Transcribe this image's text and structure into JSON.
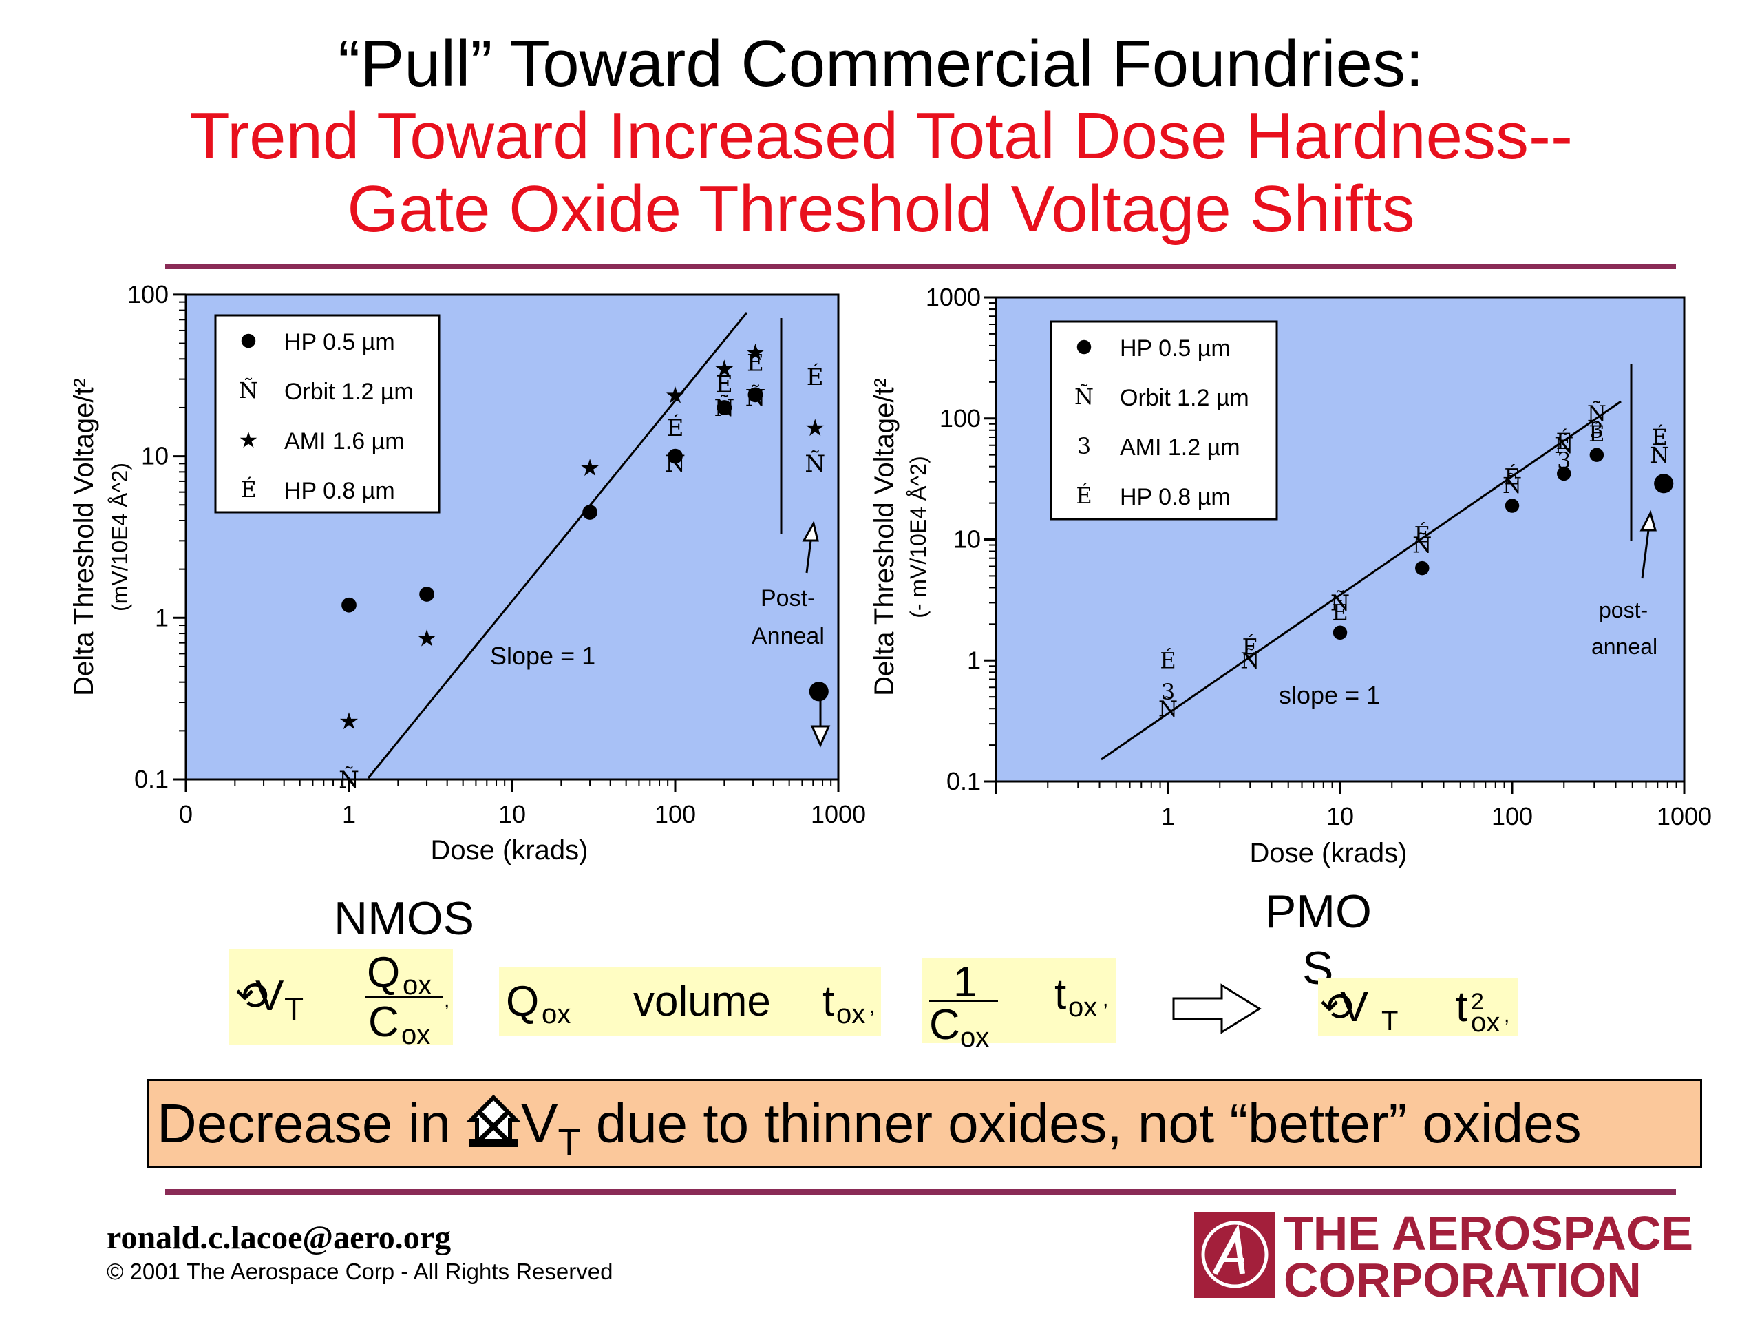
{
  "title": {
    "line1": "“Pull” Toward Commercial Foundries:",
    "line2": "Trend Toward Increased Total Dose Hardness--",
    "line3": "Gate Oxide Threshold Voltage Shifts"
  },
  "colors": {
    "accent_red": "#e8101d",
    "rule": "#8a2b56",
    "plot_bg": "#a8c1f6",
    "highlight": "#fffdc3",
    "banner": "#fbc89b",
    "brand": "#a31f3b"
  },
  "chart_data": [
    {
      "type": "scatter",
      "x_scale": "log",
      "y_scale": "log",
      "xlabel": "Dose (krads)",
      "ylabel": "Delta Threshold Voltage/t²",
      "ylabel_unit": "(mV/10E4 Å^2)",
      "xlim": [
        0.1,
        1000
      ],
      "ylim": [
        0.1,
        100
      ],
      "x_ticklabels": [
        "0",
        "1",
        "10",
        "100",
        "1000"
      ],
      "y_ticklabels": [
        "0.1",
        "1",
        "10",
        "100"
      ],
      "legend_position": "top-left",
      "series": [
        {
          "name": "HP 0.5 µm",
          "marker": "●",
          "points": [
            [
              1,
              1.2
            ],
            [
              3,
              1.4
            ],
            [
              30,
              4.5
            ],
            [
              100,
              10
            ],
            [
              200,
              20
            ],
            [
              310,
              24
            ]
          ]
        },
        {
          "name": "Orbit 1.2  µm",
          "marker": "Ñ",
          "points": [
            [
              1,
              0.1
            ],
            [
              100,
              9
            ],
            [
              200,
              20
            ],
            [
              310,
              23
            ]
          ]
        },
        {
          "name": "AMI 1.6 µm",
          "marker": "★",
          "points": [
            [
              1,
              0.23
            ],
            [
              3,
              0.75
            ],
            [
              30,
              8.5
            ],
            [
              100,
              24
            ],
            [
              200,
              35
            ],
            [
              310,
              44
            ]
          ]
        },
        {
          "name": "HP 0.8 µm",
          "marker": "É",
          "points": [
            [
              100,
              15
            ],
            [
              200,
              28
            ],
            [
              310,
              38
            ]
          ]
        }
      ],
      "post_anneal_points": [
        {
          "marker": "É",
          "x": 720,
          "y": 31
        },
        {
          "marker": "★",
          "x": 720,
          "y": 15
        },
        {
          "marker": "Ñ",
          "x": 720,
          "y": 9
        },
        {
          "marker": "●",
          "x": 760,
          "y": 0.35
        }
      ],
      "annotations": {
        "slope": "Slope = 1",
        "post1": "Post-",
        "post2": "Anneal"
      }
    },
    {
      "type": "scatter",
      "x_scale": "log",
      "y_scale": "log",
      "xlabel": "Dose (krads)",
      "ylabel": "Delta Threshold Voltage/t²",
      "ylabel_unit": "(- mV/10E4 Å^2)",
      "xlim": [
        0.1,
        1000
      ],
      "ylim": [
        0.1,
        1000
      ],
      "x_ticklabels": [
        "1",
        "10",
        "100",
        "1000"
      ],
      "y_ticklabels": [
        "0.1",
        "1",
        "10",
        "100",
        "1000"
      ],
      "legend_position": "top-left",
      "series": [
        {
          "name": "HP 0.5 µm",
          "marker": "●",
          "points": [
            [
              10,
              1.7
            ],
            [
              30,
              5.8
            ],
            [
              100,
              19
            ],
            [
              200,
              35
            ],
            [
              310,
              50
            ]
          ]
        },
        {
          "name": "Orbit 1.2 µm",
          "marker": "Ñ",
          "points": [
            [
              1,
              0.4
            ],
            [
              3,
              1
            ],
            [
              10,
              3
            ],
            [
              30,
              9
            ],
            [
              100,
              28
            ],
            [
              200,
              60
            ],
            [
              310,
              110
            ]
          ]
        },
        {
          "name": "AMI 1.2 µm",
          "marker": "3",
          "points": [
            [
              1,
              0.55
            ],
            [
              200,
              45
            ],
            [
              310,
              80
            ]
          ]
        },
        {
          "name": "HP 0.8 µm",
          "marker": "É",
          "points": [
            [
              1,
              1
            ],
            [
              3,
              1.3
            ],
            [
              10,
              2.5
            ],
            [
              30,
              11
            ],
            [
              100,
              33
            ],
            [
              200,
              65
            ],
            [
              310,
              75
            ]
          ]
        }
      ],
      "post_anneal_points": [
        {
          "marker": "É",
          "x": 720,
          "y": 70
        },
        {
          "marker": "Ñ",
          "x": 720,
          "y": 50
        },
        {
          "marker": "●",
          "x": 760,
          "y": 29
        }
      ],
      "annotations": {
        "slope": "slope = 1",
        "post1": "post-",
        "post2": "anneal"
      }
    }
  ],
  "labels": {
    "nmos": "NMOS",
    "pmos_a": "PMO",
    "pmos_b": "S"
  },
  "equations": {
    "vt": "V",
    "sub_t": "T",
    "box": "",
    "q": "Q",
    "c": "C",
    "ox": "ox",
    "comma": ",",
    "volume": "volume",
    "t": "t",
    "one": "1",
    "sq": "2"
  },
  "banner": {
    "pre": "Decrease in ",
    "v": "V",
    "t": "T",
    "post": " due to thinner oxides, not “better” oxides"
  },
  "footer": {
    "email": "ronald.c.lacoe@aero.org",
    "copyright": "© 2001 The Aerospace Corp - All Rights Reserved",
    "logo_line1": "THE AEROSPACE",
    "logo_line2": "CORPORATION"
  }
}
